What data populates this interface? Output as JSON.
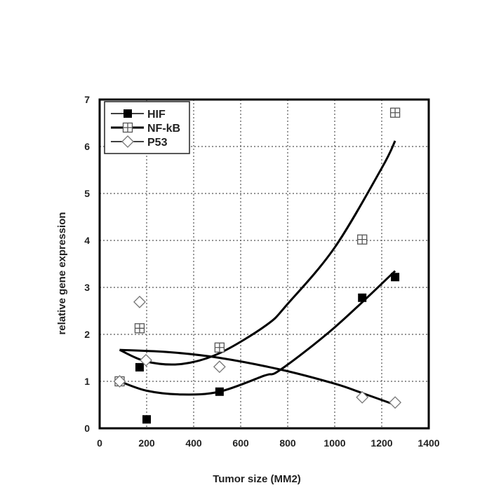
{
  "chart_data": {
    "type": "scatter",
    "title": "",
    "xlabel": "Tumor size (MM2)",
    "ylabel": "relative gene expression",
    "xlim": [
      0,
      1400
    ],
    "ylim": [
      0,
      7
    ],
    "xticks": [
      0,
      200,
      400,
      600,
      800,
      1000,
      1200,
      1400
    ],
    "yticks": [
      0,
      1,
      2,
      3,
      4,
      5,
      6,
      7
    ],
    "grid": true,
    "legend_position": "top-left",
    "series": [
      {
        "name": "HIF",
        "marker": "filled-square",
        "color": "#000000",
        "points": [
          [
            170,
            1.3
          ],
          [
            200,
            0.19
          ],
          [
            510,
            0.78
          ],
          [
            1117,
            2.78
          ],
          [
            1257,
            3.22
          ]
        ],
        "fit": [
          [
            85,
            1.0
          ],
          [
            200,
            0.8
          ],
          [
            350,
            0.72
          ],
          [
            510,
            0.78
          ],
          [
            700,
            1.12
          ],
          [
            770,
            1.25
          ],
          [
            1000,
            2.15
          ],
          [
            1257,
            3.35
          ]
        ]
      },
      {
        "name": "NF-kB",
        "marker": "crossed-square",
        "color": "#555555",
        "points": [
          [
            85,
            1.0
          ],
          [
            170,
            2.13
          ],
          [
            510,
            1.72
          ],
          [
            1117,
            4.02
          ],
          [
            1257,
            6.72
          ]
        ],
        "fit": [
          [
            85,
            1.67
          ],
          [
            200,
            1.42
          ],
          [
            350,
            1.37
          ],
          [
            510,
            1.6
          ],
          [
            710,
            2.2
          ],
          [
            800,
            2.65
          ],
          [
            1000,
            3.85
          ],
          [
            1200,
            5.54
          ],
          [
            1257,
            6.12
          ]
        ]
      },
      {
        "name": "P53",
        "marker": "open-diamond",
        "color": "#777777",
        "points": [
          [
            85,
            1.0
          ],
          [
            170,
            2.69
          ],
          [
            197,
            1.45
          ],
          [
            510,
            1.31
          ],
          [
            1117,
            0.66
          ],
          [
            1257,
            0.55
          ]
        ],
        "fit": [
          [
            85,
            1.67
          ],
          [
            300,
            1.62
          ],
          [
            510,
            1.5
          ],
          [
            770,
            1.25
          ],
          [
            1000,
            0.95
          ],
          [
            1117,
            0.75
          ],
          [
            1257,
            0.5
          ]
        ]
      }
    ]
  }
}
